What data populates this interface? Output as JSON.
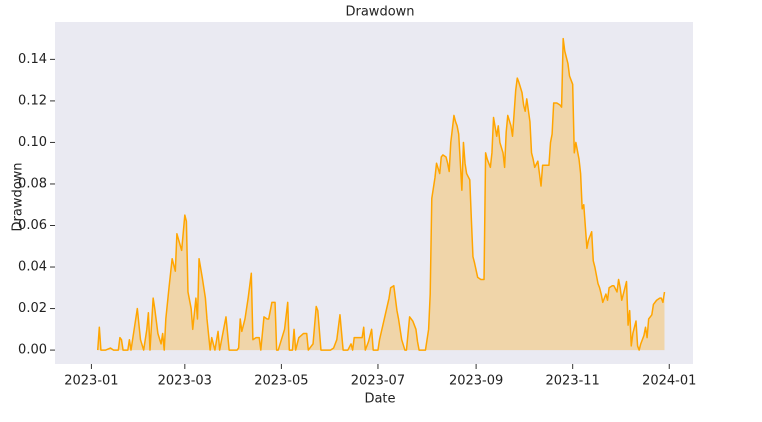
{
  "chart_data": {
    "type": "area",
    "title": "Drawdown",
    "x_label": "Date",
    "y_label": "Drawdown",
    "x": [
      4,
      5,
      6,
      9,
      12,
      14,
      17,
      18,
      19,
      20,
      23,
      24,
      25,
      27,
      29,
      31,
      33,
      35,
      36,
      37,
      39,
      40,
      42,
      44,
      45,
      46,
      47,
      49,
      51,
      53,
      54,
      57,
      59,
      60,
      61,
      63,
      64,
      66,
      67,
      68,
      70,
      72,
      73,
      75,
      76,
      78,
      80,
      81,
      83,
      85,
      87,
      92,
      93,
      94,
      95,
      97,
      99,
      101,
      102,
      104,
      106,
      107,
      109,
      111,
      112,
      114,
      116,
      117,
      118,
      120,
      122,
      124,
      125,
      127,
      128,
      129,
      131,
      134,
      136,
      137,
      140,
      142,
      143,
      145,
      151,
      153,
      155,
      157,
      159,
      162,
      164,
      165,
      166,
      169,
      171,
      172,
      173,
      175,
      177,
      178,
      181,
      182,
      185,
      188,
      189,
      191,
      193,
      194,
      196,
      198,
      199,
      201,
      203,
      205,
      206,
      207,
      211,
      213,
      214,
      215,
      217,
      218,
      220,
      221,
      222,
      224,
      225,
      226,
      227,
      229,
      230,
      231,
      232,
      234,
      235,
      236,
      237,
      239,
      240,
      241,
      242,
      244,
      246,
      248,
      249,
      250,
      252,
      253,
      254,
      256,
      257,
      258,
      260,
      261,
      262,
      263,
      265,
      266,
      268,
      269,
      270,
      272,
      273,
      274,
      275,
      277,
      278,
      279,
      280,
      282,
      283,
      284,
      285,
      287,
      289,
      290,
      291,
      292,
      294,
      296,
      297,
      298,
      299,
      301,
      302,
      304,
      305,
      306,
      308,
      309,
      310,
      311,
      313,
      314,
      316,
      317,
      318,
      320,
      321,
      322,
      323,
      325,
      326,
      327,
      329,
      330,
      332,
      333,
      334,
      335,
      337,
      338,
      339,
      340,
      341,
      342,
      344,
      345,
      346,
      347,
      349,
      350,
      351,
      352,
      354,
      355,
      357,
      359,
      360,
      361,
      362
    ],
    "values": [
      0,
      0.011,
      0,
      0,
      0.001,
      0,
      0,
      0.006,
      0.005,
      0,
      0,
      0.005,
      0,
      0.01,
      0.02,
      0.005,
      0,
      0.01,
      0.018,
      0,
      0.025,
      0.02,
      0.008,
      0.003,
      0.008,
      0,
      0.015,
      0.03,
      0.044,
      0.038,
      0.056,
      0.048,
      0.065,
      0.062,
      0.028,
      0.02,
      0.01,
      0.025,
      0.015,
      0.044,
      0.035,
      0.025,
      0.015,
      0,
      0.006,
      0,
      0.009,
      0,
      0.008,
      0.016,
      0,
      0,
      0.001,
      0.015,
      0.009,
      0.015,
      0.025,
      0.037,
      0.005,
      0.006,
      0.006,
      0,
      0.016,
      0.015,
      0.015,
      0.023,
      0.023,
      0,
      0,
      0.005,
      0.01,
      0.023,
      0,
      0,
      0.01,
      0,
      0.006,
      0.008,
      0.008,
      0,
      0.003,
      0.021,
      0.019,
      0,
      0,
      0.001,
      0.005,
      0.017,
      0,
      0,
      0.003,
      0,
      0.006,
      0.006,
      0.006,
      0.011,
      0,
      0.004,
      0.01,
      0,
      0,
      0.005,
      0.015,
      0.025,
      0.03,
      0.031,
      0.019,
      0.015,
      0.005,
      0,
      0,
      0.016,
      0.014,
      0.01,
      0.004,
      0,
      0,
      0.01,
      0.027,
      0.073,
      0.083,
      0.09,
      0.085,
      0.093,
      0.094,
      0.093,
      0.09,
      0.086,
      0.1,
      0.113,
      0.11,
      0.108,
      0.104,
      0.077,
      0.1,
      0.09,
      0.085,
      0.082,
      0.063,
      0.045,
      0.042,
      0.035,
      0.034,
      0.034,
      0.095,
      0.092,
      0.088,
      0.095,
      0.112,
      0.103,
      0.108,
      0.1,
      0.095,
      0.088,
      0.105,
      0.113,
      0.108,
      0.103,
      0.125,
      0.131,
      0.129,
      0.124,
      0.118,
      0.115,
      0.121,
      0.11,
      0.095,
      0.092,
      0.088,
      0.091,
      0.085,
      0.079,
      0.089,
      0.089,
      0.089,
      0.1,
      0.104,
      0.119,
      0.119,
      0.118,
      0.117,
      0.15,
      0.144,
      0.138,
      0.132,
      0.128,
      0.095,
      0.1,
      0.092,
      0.085,
      0.068,
      0.07,
      0.049,
      0.053,
      0.057,
      0.043,
      0.04,
      0.032,
      0.03,
      0.027,
      0.023,
      0.027,
      0.024,
      0.03,
      0.031,
      0.031,
      0.028,
      0.034,
      0.03,
      0.024,
      0.03,
      0.033,
      0.012,
      0.019,
      0.002,
      0.008,
      0.014,
      0.002,
      0,
      0.003,
      0.007,
      0.011,
      0.006,
      0.015,
      0.017,
      0.022,
      0.024,
      0.025,
      0.025,
      0.023,
      0.028
    ],
    "color": "#ffa500",
    "xlim": [
      -23,
      380
    ],
    "xticks": [
      {
        "value": 0,
        "label": "2023-01"
      },
      {
        "value": 59,
        "label": "2023-03"
      },
      {
        "value": 120,
        "label": "2023-05"
      },
      {
        "value": 181,
        "label": "2023-07"
      },
      {
        "value": 243,
        "label": "2023-09"
      },
      {
        "value": 304,
        "label": "2023-11"
      },
      {
        "value": 365,
        "label": "2024-01"
      }
    ],
    "ylim": [
      -0.0067,
      0.158
    ],
    "yticks": [
      {
        "value": 0,
        "label": "0.00"
      },
      {
        "value": 0.02,
        "label": "0.02"
      },
      {
        "value": 0.04,
        "label": "0.04"
      },
      {
        "value": 0.06,
        "label": "0.06"
      },
      {
        "value": 0.08,
        "label": "0.08"
      },
      {
        "value": 0.1,
        "label": "0.10"
      },
      {
        "value": 0.12,
        "label": "0.12"
      },
      {
        "value": 0.14,
        "label": "0.14"
      }
    ],
    "grid": false
  }
}
